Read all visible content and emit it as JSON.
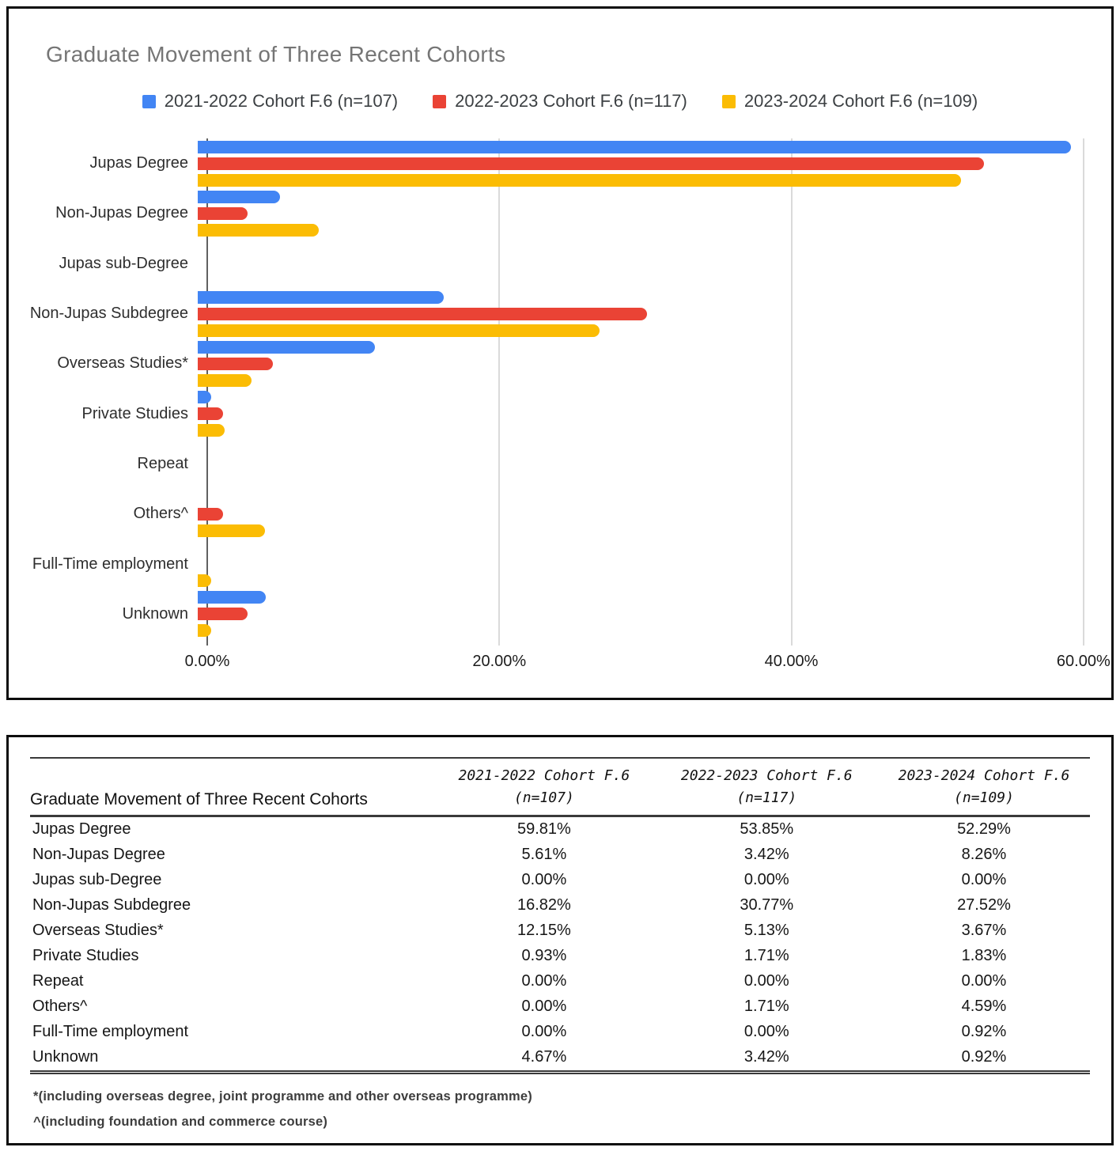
{
  "chart": {
    "title": "Graduate Movement of Three Recent Cohorts",
    "legend": [
      {
        "label": "2021-2022 Cohort F.6 (n=107)",
        "color": "#4285F4"
      },
      {
        "label": "2022-2023 Cohort F.6 (n=117)",
        "color": "#EA4335"
      },
      {
        "label": "2023-2024 Cohort F.6 (n=109)",
        "color": "#FBBC04"
      }
    ]
  },
  "chart_data": {
    "type": "bar",
    "orientation": "horizontal",
    "title": "Graduate Movement of Three Recent Cohorts",
    "xlabel": "",
    "ylabel": "",
    "grid": true,
    "legend_position": "top",
    "xlim": [
      0,
      61.2
    ],
    "x_tick_values": [
      0,
      20,
      40,
      60
    ],
    "x_tick_labels": [
      "0.00%",
      "20.00%",
      "40.00%",
      "60.00%"
    ],
    "categories": [
      "Jupas Degree",
      "Non-Jupas Degree",
      "Jupas sub-Degree",
      "Non-Jupas Subdegree",
      "Overseas Studies*",
      "Private Studies",
      "Repeat",
      "Others^",
      "Full-Time employment",
      "Unknown"
    ],
    "series": [
      {
        "name": "2021-2022 Cohort F.6 (n=107)",
        "color": "#4285F4",
        "values": [
          59.81,
          5.61,
          0.0,
          16.82,
          12.15,
          0.93,
          0.0,
          0.0,
          0.0,
          4.67
        ]
      },
      {
        "name": "2022-2023 Cohort F.6 (n=117)",
        "color": "#EA4335",
        "values": [
          53.85,
          3.42,
          0.0,
          30.77,
          5.13,
          1.71,
          0.0,
          1.71,
          0.0,
          3.42
        ]
      },
      {
        "name": "2023-2024 Cohort F.6 (n=109)",
        "color": "#FBBC04",
        "values": [
          52.29,
          8.26,
          0.0,
          27.52,
          3.67,
          1.83,
          0.0,
          4.59,
          0.92,
          0.92
        ]
      }
    ]
  },
  "table": {
    "title_header": "Graduate Movement of Three Recent Cohorts",
    "col_headers": [
      {
        "line1": "2021-2022 Cohort F.6",
        "line2": "(n=107)"
      },
      {
        "line1": "2022-2023 Cohort F.6",
        "line2": "(n=117)"
      },
      {
        "line1": "2023-2024 Cohort F.6",
        "line2": "(n=109)"
      }
    ],
    "rows": [
      {
        "label": "Jupas Degree",
        "values": [
          "59.81%",
          "53.85%",
          "52.29%"
        ]
      },
      {
        "label": "Non-Jupas Degree",
        "values": [
          "5.61%",
          "3.42%",
          "8.26%"
        ]
      },
      {
        "label": "Jupas sub-Degree",
        "values": [
          "0.00%",
          "0.00%",
          "0.00%"
        ]
      },
      {
        "label": "Non-Jupas Subdegree",
        "values": [
          "16.82%",
          "30.77%",
          "27.52%"
        ]
      },
      {
        "label": "Overseas Studies*",
        "values": [
          "12.15%",
          "5.13%",
          "3.67%"
        ]
      },
      {
        "label": "Private Studies",
        "values": [
          "0.93%",
          "1.71%",
          "1.83%"
        ]
      },
      {
        "label": "Repeat",
        "values": [
          "0.00%",
          "0.00%",
          "0.00%"
        ]
      },
      {
        "label": "Others^",
        "values": [
          "0.00%",
          "1.71%",
          "4.59%"
        ]
      },
      {
        "label": "Full-Time employment",
        "values": [
          "0.00%",
          "0.00%",
          "0.92%"
        ]
      },
      {
        "label": "Unknown",
        "values": [
          "4.67%",
          "3.42%",
          "0.92%"
        ]
      }
    ],
    "footnotes": [
      "*(including overseas degree, joint programme and other overseas programme)",
      "^(including foundation and commerce course)"
    ]
  }
}
